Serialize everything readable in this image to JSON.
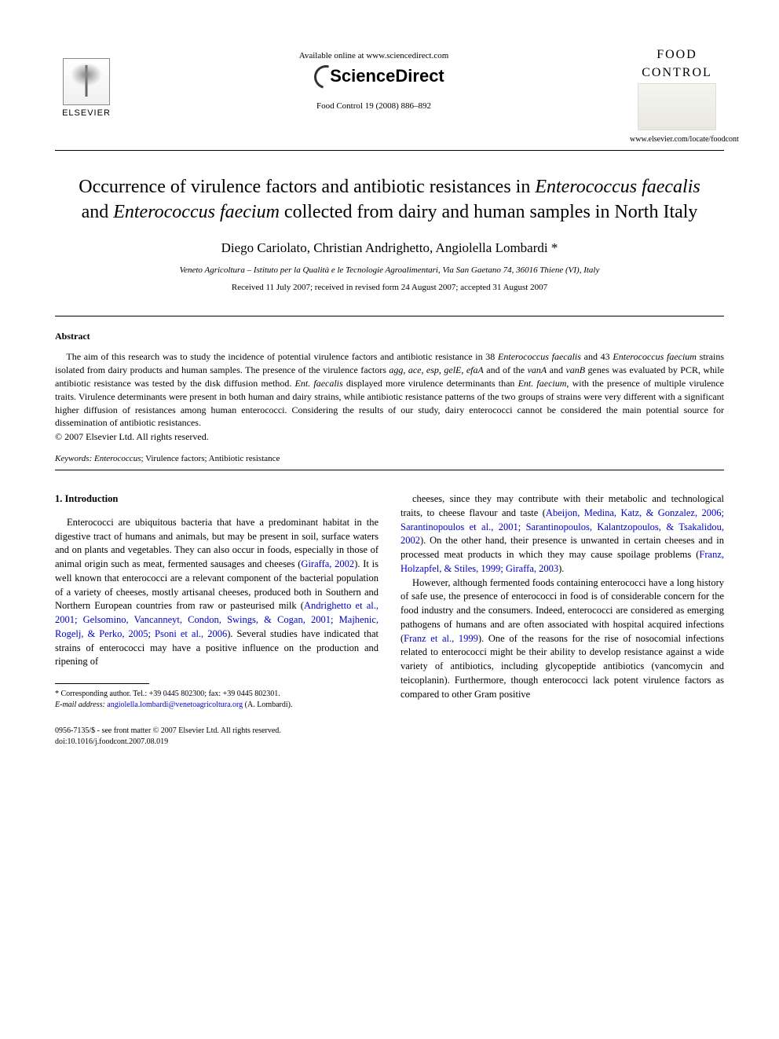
{
  "header": {
    "publisher_name": "ELSEVIER",
    "available_online": "Available online at www.sciencedirect.com",
    "sciencedirect_label": "ScienceDirect",
    "journal_reference": "Food Control 19 (2008) 886–892",
    "journal_name_line1": "FOOD",
    "journal_name_line2": "CONTROL",
    "journal_url": "www.elsevier.com/locate/foodcont"
  },
  "article": {
    "title_html": "Occurrence of virulence factors and antibiotic resistances in <em>Enterococcus faecalis</em> and <em>Enterococcus faecium</em> collected from dairy and human samples in North Italy",
    "authors": "Diego Cariolato, Christian Andrighetto, Angiolella Lombardi *",
    "affiliation": "Veneto Agricoltura – Istituto per la Qualità e le Tecnologie Agroalimentari, Via San Gaetano 74, 36016 Thiene (VI), Italy",
    "dates": "Received 11 July 2007; received in revised form 24 August 2007; accepted 31 August 2007"
  },
  "abstract": {
    "heading": "Abstract",
    "body_html": "The aim of this research was to study the incidence of potential virulence factors and antibiotic resistance in 38 <em>Enterococcus faecalis</em> and 43 <em>Enterococcus faecium</em> strains isolated from dairy products and human samples. The presence of the virulence factors <em>agg</em>, <em>ace</em>, <em>esp</em>, <em>gelE</em>, <em>efaA</em> and of the <em>vanA</em> and <em>vanB</em> genes was evaluated by PCR, while antibiotic resistance was tested by the disk diffusion method. <em>Ent. faecalis</em> displayed more virulence determinants than <em>Ent. faecium</em>, with the presence of multiple virulence traits. Virulence determinants were present in both human and dairy strains, while antibiotic resistance patterns of the two groups of strains were very different with a significant higher diffusion of resistances among human enterococci. Considering the results of our study, dairy enterococci cannot be considered the main potential source for dissemination of antibiotic resistances.",
    "copyright": "© 2007 Elsevier Ltd. All rights reserved."
  },
  "keywords": {
    "label": "Keywords:",
    "text_html": " <em>Enterococcus</em>; Virulence factors; Antibiotic resistance"
  },
  "introduction": {
    "heading": "1. Introduction",
    "col1_p1_html": "Enterococci are ubiquitous bacteria that have a predominant habitat in the digestive tract of humans and animals, but may be present in soil, surface waters and on plants and vegetables. They can also occur in foods, especially in those of animal origin such as meat, fermented sausages and cheeses (<span class=\"cite\">Giraffa, 2002</span>). It is well known that enterococci are a relevant component of the bacterial population of a variety of cheeses, mostly artisanal cheeses, produced both in Southern and Northern European countries from raw or pasteurised milk (<span class=\"cite\">Andrighetto et al., 2001; Gelsomino, Vancanneyt, Condon, Swings, &amp; Cogan, 2001; Majhenic, Rogelj, &amp; Perko, 2005; Psoni et al., 2006</span>). Several studies have indicated that strains of enterococci may have a positive influence on the production and ripening of",
    "col2_p1_html": "cheeses, since they may contribute with their metabolic and technological traits, to cheese flavour and taste (<span class=\"cite\">Abeijon, Medina, Katz, &amp; Gonzalez, 2006; Sarantinopoulos et al., 2001; Sarantinopoulos, Kalantzopoulos, &amp; Tsakalidou, 2002</span>). On the other hand, their presence is unwanted in certain cheeses and in processed meat products in which they may cause spoilage problems (<span class=\"cite\">Franz, Holzapfel, &amp; Stiles, 1999; Giraffa, 2003</span>).",
    "col2_p2_html": "However, although fermented foods containing enterococci have a long history of safe use, the presence of enterococci in food is of considerable concern for the food industry and the consumers. Indeed, enterococci are considered as emerging pathogens of humans and are often associated with hospital acquired infections (<span class=\"cite\">Franz et al., 1999</span>). One of the reasons for the rise of nosocomial infections related to enterococci might be their ability to develop resistance against a wide variety of antibiotics, including glycopeptide antibiotics (vancomycin and teicoplanin). Furthermore, though enterococci lack potent virulence factors as compared to other Gram positive"
  },
  "footnote": {
    "corresponding": "* Corresponding author. Tel.: +39 0445 802300; fax: +39 0445 802301.",
    "email_label": "E-mail address:",
    "email": "angiolella.lombardi@venetoagricoltura.org",
    "email_attribution": "(A. Lombardi)."
  },
  "footer": {
    "front_matter": "0956-7135/$ - see front matter © 2007 Elsevier Ltd. All rights reserved.",
    "doi": "doi:10.1016/j.foodcont.2007.08.019"
  }
}
